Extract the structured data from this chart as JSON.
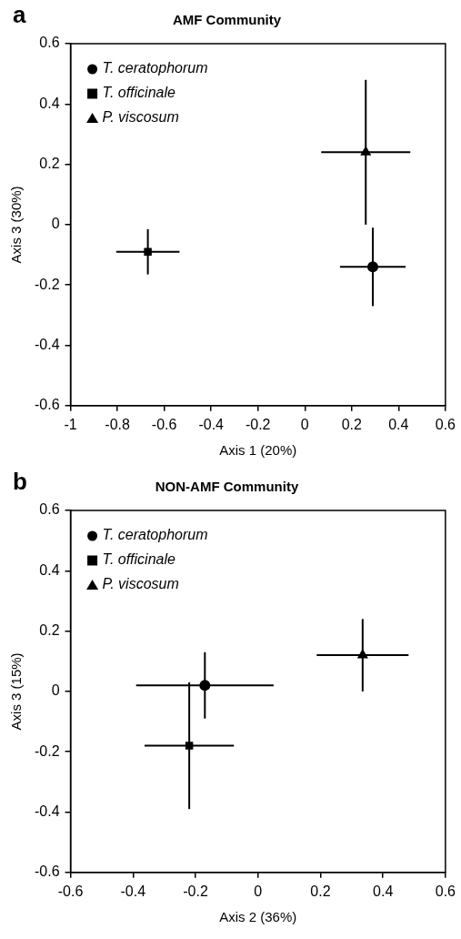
{
  "chart_data": [
    {
      "type": "scatter",
      "title": "AMF Community",
      "xlabel": "Axis 1 (20%)",
      "ylabel": "Axis 3 (30%)",
      "annotations": [
        "a"
      ],
      "xlim": [
        -1,
        0.6
      ],
      "xticks": [
        -1,
        -0.8,
        -0.6,
        -0.4,
        -0.2,
        0,
        0.2,
        0.4,
        0.6
      ],
      "ylim": [
        -0.6,
        0.6
      ],
      "yticks": [
        -0.6,
        -0.4,
        -0.2,
        0,
        0.2,
        0.4,
        0.6
      ],
      "grid": false,
      "legend": "top left",
      "series": [
        {
          "name": "T. ceratophorum",
          "color": "#000000",
          "marker": "circle",
          "x": [
            0.29
          ],
          "values": [
            -0.14
          ],
          "xerrors": [
            0.14
          ],
          "errors": [
            0.13
          ]
        },
        {
          "name": "T. officinale",
          "color": "#000000",
          "marker": "square",
          "x": [
            -0.67
          ],
          "values": [
            -0.09
          ],
          "xerrors": [
            0.135
          ],
          "errors": [
            0.075
          ]
        },
        {
          "name": "P. viscosum",
          "color": "#000000",
          "marker": "triangle",
          "x": [
            0.26
          ],
          "values": [
            0.24
          ],
          "xerrors": [
            0.19
          ],
          "errors": [
            0.24
          ]
        }
      ]
    },
    {
      "type": "scatter",
      "title": "NON-AMF Community",
      "xlabel": "Axis 2 (36%)",
      "ylabel": "Axis 3 (15%)",
      "annotations": [
        "b"
      ],
      "xlim": [
        -0.6,
        0.6
      ],
      "xticks": [
        -0.6,
        -0.4,
        -0.2,
        0,
        0.2,
        0.4,
        0.6
      ],
      "ylim": [
        -0.6,
        0.6
      ],
      "yticks": [
        -0.6,
        -0.4,
        -0.2,
        0,
        0.2,
        0.4,
        0.6
      ],
      "grid": false,
      "legend": "top left",
      "series": [
        {
          "name": "T. ceratophorum",
          "color": "#000000",
          "marker": "circle",
          "x": [
            -0.17
          ],
          "values": [
            0.02
          ],
          "xerrors": [
            0.22
          ],
          "errors": [
            0.11
          ]
        },
        {
          "name": "T. officinale",
          "color": "#000000",
          "marker": "square",
          "x": [
            -0.22
          ],
          "values": [
            -0.18
          ],
          "xerrors": [
            0.143
          ],
          "errors": [
            0.21
          ]
        },
        {
          "name": "P. viscosum",
          "color": "#000000",
          "marker": "triangle",
          "x": [
            0.335
          ],
          "values": [
            0.12
          ],
          "xerrors": [
            0.147
          ],
          "errors": [
            0.12
          ]
        }
      ]
    }
  ]
}
